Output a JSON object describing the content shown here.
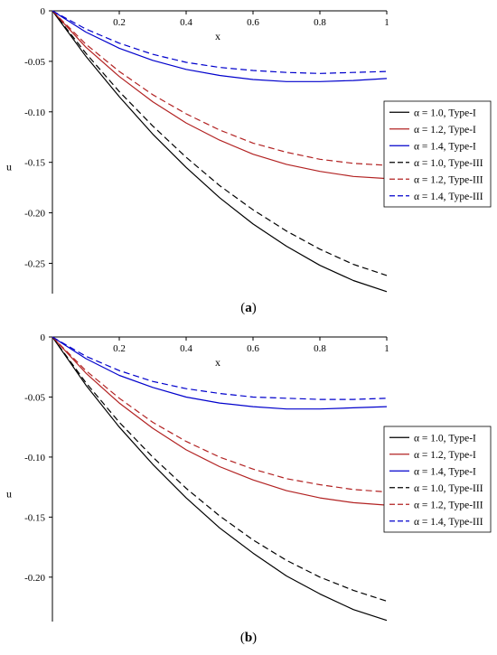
{
  "chart_data": [
    {
      "type": "line",
      "panel_label": "a",
      "xlabel": "x",
      "ylabel": "u",
      "xlim": [
        0,
        1
      ],
      "ylim": [
        -0.28,
        0
      ],
      "x_ticks": [
        "0.2",
        "0.4",
        "0.6",
        "0.8",
        "1"
      ],
      "y_ticks": [
        "0",
        "-0.05",
        "-0.10",
        "-0.15",
        "-0.20",
        "-0.25"
      ],
      "y_tick_values": [
        0,
        -0.05,
        -0.1,
        -0.15,
        -0.2,
        -0.25
      ],
      "legend_position": "right-middle",
      "x": [
        0,
        0.1,
        0.2,
        0.3,
        0.4,
        0.5,
        0.6,
        0.7,
        0.8,
        0.9,
        1.0
      ],
      "series": [
        {
          "name": "α = 1.0, Type-I",
          "color": "#000000",
          "dash": false,
          "values": [
            0,
            -0.045,
            -0.085,
            -0.122,
            -0.155,
            -0.185,
            -0.211,
            -0.233,
            -0.252,
            -0.267,
            -0.278
          ]
        },
        {
          "name": "α = 1.2, Type-I",
          "color": "#b22222",
          "dash": false,
          "values": [
            0,
            -0.036,
            -0.065,
            -0.09,
            -0.111,
            -0.128,
            -0.142,
            -0.152,
            -0.159,
            -0.164,
            -0.166
          ]
        },
        {
          "name": "α = 1.4, Type-I",
          "color": "#0000cc",
          "dash": false,
          "values": [
            0,
            -0.021,
            -0.037,
            -0.049,
            -0.058,
            -0.064,
            -0.068,
            -0.07,
            -0.07,
            -0.069,
            -0.067
          ]
        },
        {
          "name": "α = 1.0, Type-III",
          "color": "#000000",
          "dash": true,
          "values": [
            0,
            -0.042,
            -0.08,
            -0.114,
            -0.145,
            -0.173,
            -0.197,
            -0.218,
            -0.236,
            -0.251,
            -0.262
          ]
        },
        {
          "name": "α = 1.2, Type-III",
          "color": "#b22222",
          "dash": true,
          "values": [
            0,
            -0.033,
            -0.06,
            -0.083,
            -0.102,
            -0.118,
            -0.131,
            -0.14,
            -0.147,
            -0.151,
            -0.153
          ]
        },
        {
          "name": "α = 1.4, Type-III",
          "color": "#0000cc",
          "dash": true,
          "values": [
            0,
            -0.018,
            -0.032,
            -0.043,
            -0.051,
            -0.056,
            -0.059,
            -0.061,
            -0.062,
            -0.061,
            -0.06
          ]
        }
      ]
    },
    {
      "type": "line",
      "panel_label": "b",
      "xlabel": "x",
      "ylabel": "u",
      "xlim": [
        0,
        1
      ],
      "ylim": [
        -0.237,
        0
      ],
      "x_ticks": [
        "0.2",
        "0.4",
        "0.6",
        "0.8",
        "1"
      ],
      "y_ticks": [
        "0",
        "-0.05",
        "-0.10",
        "-0.15",
        "-0.20"
      ],
      "y_tick_values": [
        0,
        -0.05,
        -0.1,
        -0.15,
        -0.2
      ],
      "legend_position": "right-middle",
      "x": [
        0,
        0.1,
        0.2,
        0.3,
        0.4,
        0.5,
        0.6,
        0.7,
        0.8,
        0.9,
        1.0
      ],
      "series": [
        {
          "name": "α = 1.0, Type-I",
          "color": "#000000",
          "dash": false,
          "values": [
            0,
            -0.04,
            -0.075,
            -0.106,
            -0.134,
            -0.159,
            -0.18,
            -0.199,
            -0.214,
            -0.227,
            -0.236
          ]
        },
        {
          "name": "α = 1.2, Type-I",
          "color": "#b22222",
          "dash": false,
          "values": [
            0,
            -0.03,
            -0.055,
            -0.076,
            -0.094,
            -0.108,
            -0.119,
            -0.128,
            -0.134,
            -0.138,
            -0.14
          ]
        },
        {
          "name": "α = 1.4, Type-I",
          "color": "#0000cc",
          "dash": false,
          "values": [
            0,
            -0.018,
            -0.032,
            -0.042,
            -0.05,
            -0.055,
            -0.058,
            -0.06,
            -0.06,
            -0.059,
            -0.058
          ]
        },
        {
          "name": "α = 1.0, Type-III",
          "color": "#000000",
          "dash": true,
          "values": [
            0,
            -0.038,
            -0.071,
            -0.1,
            -0.126,
            -0.149,
            -0.169,
            -0.186,
            -0.2,
            -0.211,
            -0.22
          ]
        },
        {
          "name": "α = 1.2, Type-III",
          "color": "#b22222",
          "dash": true,
          "values": [
            0,
            -0.028,
            -0.051,
            -0.071,
            -0.087,
            -0.1,
            -0.11,
            -0.118,
            -0.123,
            -0.127,
            -0.129
          ]
        },
        {
          "name": "α = 1.4, Type-III",
          "color": "#0000cc",
          "dash": true,
          "values": [
            0,
            -0.016,
            -0.028,
            -0.037,
            -0.043,
            -0.047,
            -0.05,
            -0.051,
            -0.052,
            -0.052,
            -0.051
          ]
        }
      ]
    }
  ]
}
